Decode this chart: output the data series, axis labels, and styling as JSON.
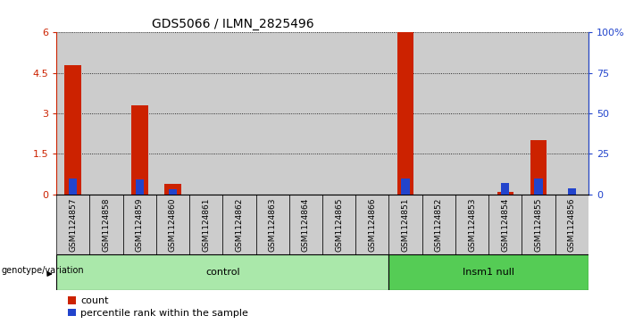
{
  "title": "GDS5066 / ILMN_2825496",
  "samples": [
    "GSM1124857",
    "GSM1124858",
    "GSM1124859",
    "GSM1124860",
    "GSM1124861",
    "GSM1124862",
    "GSM1124863",
    "GSM1124864",
    "GSM1124865",
    "GSM1124866",
    "GSM1124851",
    "GSM1124852",
    "GSM1124853",
    "GSM1124854",
    "GSM1124855",
    "GSM1124856"
  ],
  "count_values": [
    4.8,
    0,
    3.3,
    0.4,
    0,
    0,
    0,
    0,
    0,
    0,
    6.0,
    0,
    0,
    0.1,
    2.0,
    0
  ],
  "percentile_values": [
    10,
    0,
    9,
    3,
    0,
    0,
    0,
    0,
    0,
    0,
    10,
    0,
    0,
    7,
    10,
    4
  ],
  "ylim_left": [
    0,
    6
  ],
  "ylim_right": [
    0,
    100
  ],
  "yticks_left": [
    0,
    1.5,
    3,
    4.5,
    6
  ],
  "ytick_labels_left": [
    "0",
    "1.5",
    "3",
    "4.5",
    "6"
  ],
  "yticks_right": [
    0,
    25,
    50,
    75,
    100
  ],
  "ytick_labels_right": [
    "0",
    "25",
    "50",
    "75",
    "100%"
  ],
  "groups": [
    {
      "label": "control",
      "start": 0,
      "end": 9,
      "color": "#aae8aa"
    },
    {
      "label": "Insm1 null",
      "start": 10,
      "end": 15,
      "color": "#55cc55"
    }
  ],
  "bar_color_red": "#cc2200",
  "bar_color_blue": "#2244cc",
  "cell_bg_color": "#cccccc",
  "left_axis_color": "#cc2200",
  "right_axis_color": "#2244cc",
  "xlabel_genotype": "genotype/variation",
  "legend_count": "count",
  "legend_percentile": "percentile rank within the sample"
}
